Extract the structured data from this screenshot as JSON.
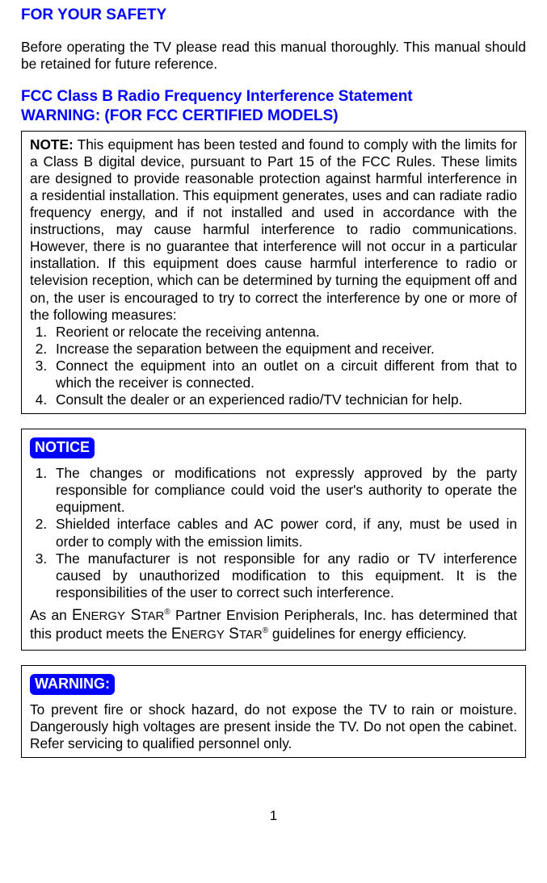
{
  "colors": {
    "accent": "#0000ff",
    "badge_bg": "#0000ff",
    "badge_text": "#ffffff",
    "text": "#000000",
    "background": "#ffffff",
    "border": "#000000"
  },
  "typography": {
    "base_font": "Arial",
    "heading_size_pt": 14,
    "body_size_pt": 13,
    "badge_size_pt": 13
  },
  "page_number": "1",
  "heading_safety": "FOR YOUR SAFETY",
  "intro_text": "Before operating the TV please read this manual thoroughly. This manual should be retained for future reference.",
  "heading_fcc_line1": "FCC Class B Radio Frequency Interference Statement",
  "heading_fcc_line2": "WARNING: (FOR FCC CERTIFIED MODELS)",
  "note": {
    "label": "NOTE:",
    "body": "This equipment has been tested and found to comply with the limits for a Class B digital device, pursuant to Part 15 of the FCC Rules. These limits are designed to provide reasonable protection against harmful interference in a residential installation. This equipment generates, uses and can radiate radio frequency energy, and if not installed and used in accordance with the instructions, may cause harmful interference to radio communications. However, there is no guarantee that interference will not occur in a particular installation. If this equipment does cause harmful interference to radio or television reception, which can be determined by turning the equipment off and on, the user is encouraged to try to correct the interference by one or more of the following measures:",
    "items": [
      "Reorient or relocate the receiving antenna.",
      "Increase the separation between the equipment and receiver.",
      "Connect the equipment into an outlet on a circuit different from that to which the receiver is connected.",
      "Consult the dealer or an experienced radio/TV technician for help."
    ]
  },
  "notice": {
    "badge": "NOTICE",
    "items": [
      "The changes or modifications not expressly approved by the party responsible for compliance could void the user's authority to operate the equipment.",
      "Shielded interface cables and AC power cord, if any, must be used in order to comply with the emission limits.",
      "The manufacturer is not responsible for any radio or TV interference caused by unauthorized modification to this equipment. It is the responsibilities of the user to correct such interference."
    ],
    "energy_prefix": "As an ",
    "energy_brand1": "ENERGY STAR",
    "energy_reg": "®",
    "energy_mid": " Partner Envision Peripherals, Inc. has determined that this product meets the ",
    "energy_brand2": "ENERGY STAR",
    "energy_suffix": " guidelines for energy efficiency."
  },
  "warning": {
    "badge": "WARNING:",
    "body": "To prevent fire or shock hazard, do not expose the TV to rain or moisture. Dangerously high voltages are present inside the TV. Do not open the cabinet. Refer servicing to qualified personnel only."
  }
}
